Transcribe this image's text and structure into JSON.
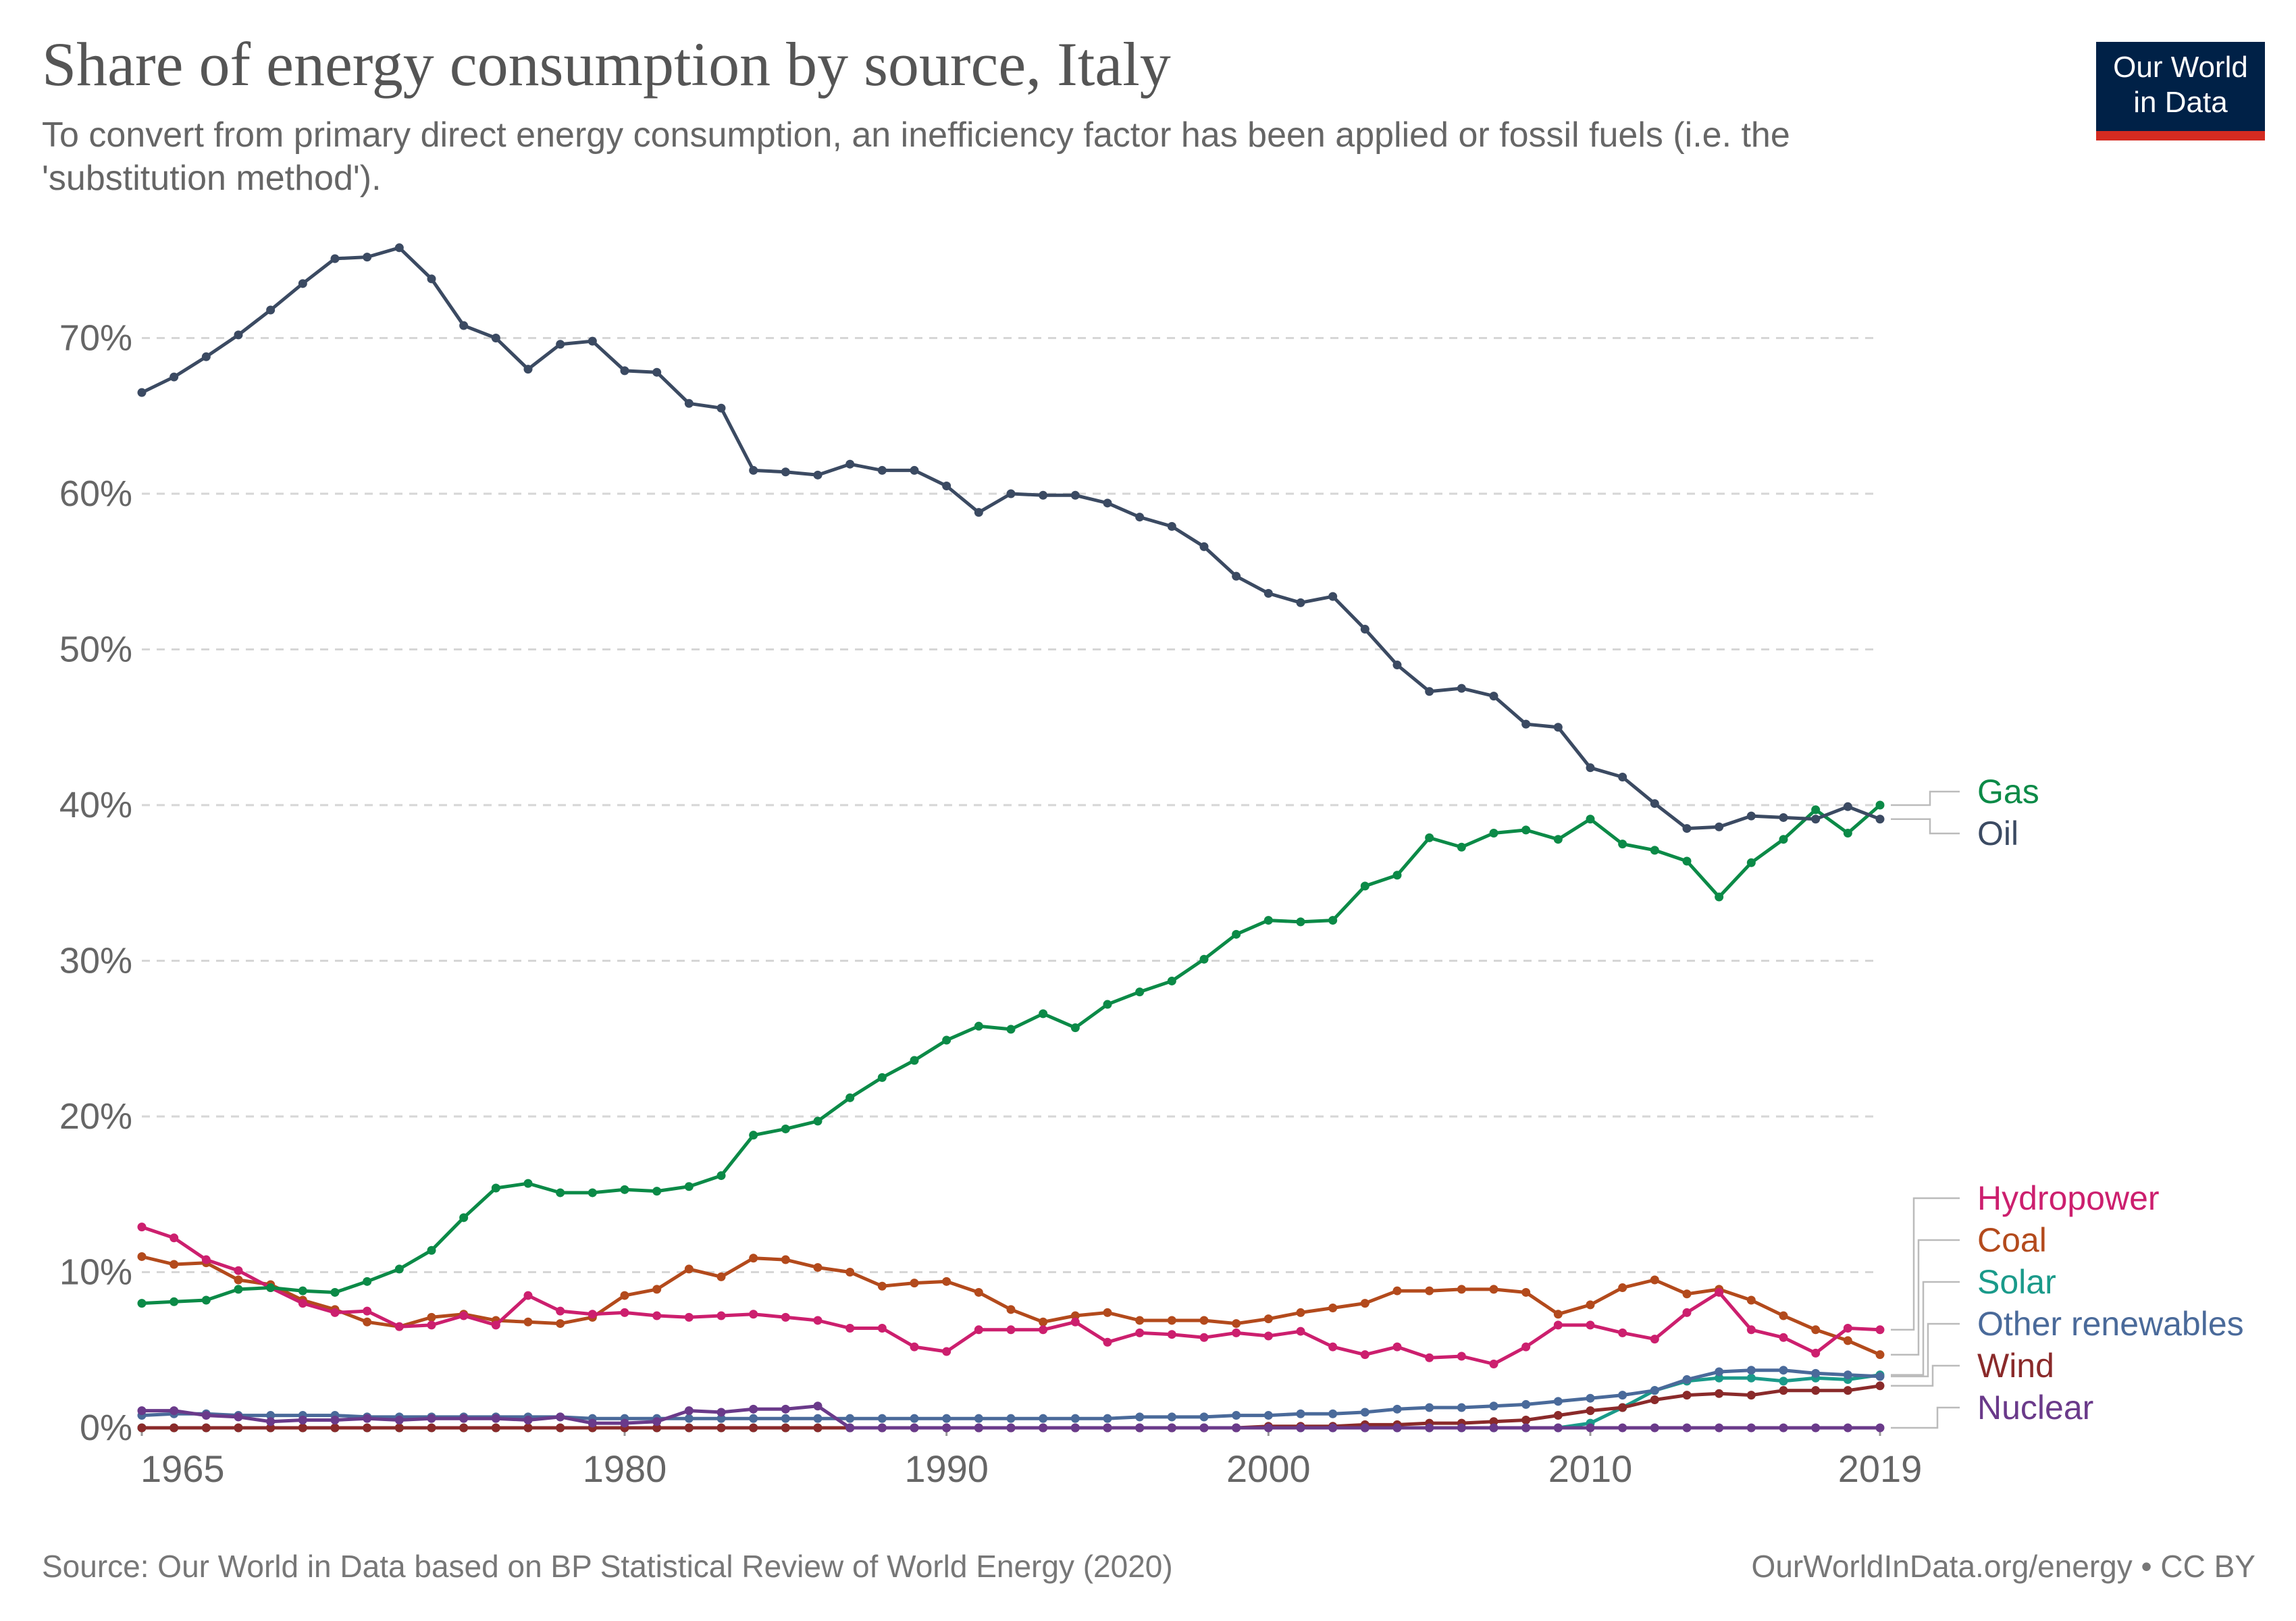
{
  "header": {
    "title": "Share of energy consumption by source, Italy",
    "subtitle": "To convert from primary direct energy consumption, an inefficiency factor has been applied or fossil fuels (i.e. the 'substitution method').",
    "logo_line1": "Our World",
    "logo_line2": "in Data"
  },
  "footer": {
    "source": "Source: Our World in Data based on BP Statistical Review of World Energy (2020)",
    "license": "OurWorldInData.org/energy • CC BY"
  },
  "colors": {
    "oil": "#3b4a62",
    "gas": "#0b8a47",
    "hydropower": "#cc1f6e",
    "coal": "#b34a1c",
    "solar": "#1a9a8a",
    "other_renewables": "#4a6a9a",
    "wind": "#8a2a2a",
    "nuclear": "#6a3a8a"
  },
  "chart_data": {
    "type": "line",
    "x_ticks": [
      "1965",
      "1980",
      "1990",
      "2000",
      "2010",
      "2019"
    ],
    "y_ticks": [
      "0%",
      "10%",
      "20%",
      "30%",
      "40%",
      "50%",
      "60%",
      "70%"
    ],
    "xlim": [
      1965,
      2019
    ],
    "ylim": [
      0,
      78
    ],
    "grid": "horizontal dashed",
    "legend": "right, labelled at line ends",
    "series": [
      {
        "name": "Oil",
        "key": "oil",
        "values": [
          66.5,
          67.5,
          68.8,
          70.2,
          71.8,
          73.5,
          75.1,
          75.2,
          75.8,
          73.8,
          70.8,
          70.0,
          68.0,
          69.6,
          69.8,
          67.9,
          67.8,
          65.8,
          65.5,
          61.5,
          61.4,
          61.2,
          61.9,
          61.5,
          61.5,
          60.5,
          58.8,
          60.0,
          59.9,
          59.9,
          59.4,
          58.5,
          57.9,
          56.6,
          54.7,
          53.6,
          53.0,
          53.4,
          51.3,
          49.0,
          47.3,
          47.5,
          47.0,
          45.2,
          45.0,
          42.4,
          41.8,
          40.1,
          38.5,
          38.6,
          39.3,
          39.2,
          39.1,
          39.9,
          39.1
        ]
      },
      {
        "name": "Gas",
        "key": "gas",
        "values": [
          8.0,
          8.1,
          8.2,
          8.9,
          9.0,
          8.8,
          8.7,
          9.4,
          10.2,
          11.4,
          13.5,
          15.4,
          15.7,
          15.1,
          15.1,
          15.3,
          15.2,
          15.5,
          16.2,
          18.8,
          19.2,
          19.7,
          21.2,
          22.5,
          23.6,
          24.9,
          25.8,
          25.6,
          26.6,
          25.7,
          27.2,
          28.0,
          28.7,
          30.1,
          31.7,
          32.6,
          32.5,
          32.6,
          34.8,
          35.5,
          37.9,
          37.3,
          38.2,
          38.4,
          37.8,
          39.1,
          37.5,
          37.1,
          36.4,
          34.1,
          36.3,
          37.8,
          39.7,
          38.2,
          40.0
        ]
      },
      {
        "name": "Hydropower",
        "key": "hydropower",
        "values": [
          12.9,
          12.2,
          10.8,
          10.1,
          9.0,
          8.0,
          7.4,
          7.5,
          6.5,
          6.6,
          7.2,
          6.6,
          8.5,
          7.5,
          7.3,
          7.4,
          7.2,
          7.1,
          7.2,
          7.3,
          7.1,
          6.9,
          6.4,
          6.4,
          5.2,
          4.9,
          6.3,
          6.3,
          6.3,
          6.8,
          5.5,
          6.1,
          6.0,
          5.8,
          6.1,
          5.9,
          6.2,
          5.2,
          4.7,
          5.2,
          4.5,
          4.6,
          4.1,
          5.2,
          6.6,
          6.6,
          6.1,
          5.7,
          7.4,
          8.7,
          6.3,
          5.8,
          4.8,
          6.4,
          6.3
        ]
      },
      {
        "name": "Coal",
        "key": "coal",
        "values": [
          11.0,
          10.5,
          10.6,
          9.5,
          9.2,
          8.2,
          7.6,
          6.8,
          6.5,
          7.1,
          7.3,
          6.9,
          6.8,
          6.7,
          7.1,
          8.5,
          8.9,
          10.2,
          9.7,
          10.9,
          10.8,
          10.3,
          10.0,
          9.1,
          9.3,
          9.4,
          8.7,
          7.6,
          6.8,
          7.2,
          7.4,
          6.9,
          6.9,
          6.9,
          6.7,
          7.0,
          7.4,
          7.7,
          8.0,
          8.8,
          8.8,
          8.9,
          8.9,
          8.7,
          7.3,
          7.9,
          9.0,
          9.5,
          8.6,
          8.9,
          8.2,
          7.2,
          6.3,
          5.6,
          4.7
        ]
      },
      {
        "name": "Solar",
        "key": "solar",
        "values": [
          0,
          0,
          0,
          0,
          0,
          0,
          0,
          0,
          0,
          0,
          0,
          0,
          0,
          0,
          0,
          0,
          0,
          0,
          0,
          0,
          0,
          0,
          0,
          0,
          0,
          0,
          0,
          0,
          0,
          0,
          0,
          0,
          0,
          0,
          0,
          0,
          0,
          0,
          0,
          0,
          0,
          0,
          0,
          0,
          0,
          0.3,
          1.3,
          2.4,
          3.0,
          3.2,
          3.2,
          3.0,
          3.2,
          3.1,
          3.4
        ]
      },
      {
        "name": "Other renewables",
        "key": "other_renewables",
        "values": [
          0.8,
          0.9,
          0.9,
          0.8,
          0.8,
          0.8,
          0.8,
          0.7,
          0.7,
          0.7,
          0.7,
          0.7,
          0.7,
          0.7,
          0.6,
          0.6,
          0.6,
          0.6,
          0.6,
          0.6,
          0.6,
          0.6,
          0.6,
          0.6,
          0.6,
          0.6,
          0.6,
          0.6,
          0.6,
          0.6,
          0.6,
          0.7,
          0.7,
          0.7,
          0.8,
          0.8,
          0.9,
          0.9,
          1.0,
          1.2,
          1.3,
          1.3,
          1.4,
          1.5,
          1.7,
          1.9,
          2.1,
          2.4,
          3.1,
          3.6,
          3.7,
          3.7,
          3.5,
          3.4,
          3.3
        ]
      },
      {
        "name": "Wind",
        "key": "wind",
        "values": [
          0,
          0,
          0,
          0,
          0,
          0,
          0,
          0,
          0,
          0,
          0,
          0,
          0,
          0,
          0,
          0,
          0,
          0,
          0,
          0,
          0,
          0,
          0,
          0,
          0,
          0,
          0,
          0,
          0,
          0,
          0,
          0,
          0,
          0,
          0,
          0.1,
          0.1,
          0.1,
          0.2,
          0.2,
          0.3,
          0.3,
          0.4,
          0.5,
          0.8,
          1.1,
          1.3,
          1.8,
          2.1,
          2.2,
          2.1,
          2.4,
          2.4,
          2.4,
          2.7
        ]
      },
      {
        "name": "Nuclear",
        "key": "nuclear",
        "values": [
          1.1,
          1.1,
          0.8,
          0.7,
          0.4,
          0.5,
          0.5,
          0.6,
          0.5,
          0.6,
          0.6,
          0.6,
          0.5,
          0.7,
          0.3,
          0.3,
          0.4,
          1.1,
          1.0,
          1.2,
          1.2,
          1.4,
          0,
          0,
          0,
          0,
          0,
          0,
          0,
          0,
          0,
          0,
          0,
          0,
          0,
          0,
          0,
          0,
          0,
          0,
          0,
          0,
          0,
          0,
          0,
          0,
          0,
          0,
          0,
          0,
          0,
          0,
          0,
          0,
          0
        ]
      }
    ]
  }
}
